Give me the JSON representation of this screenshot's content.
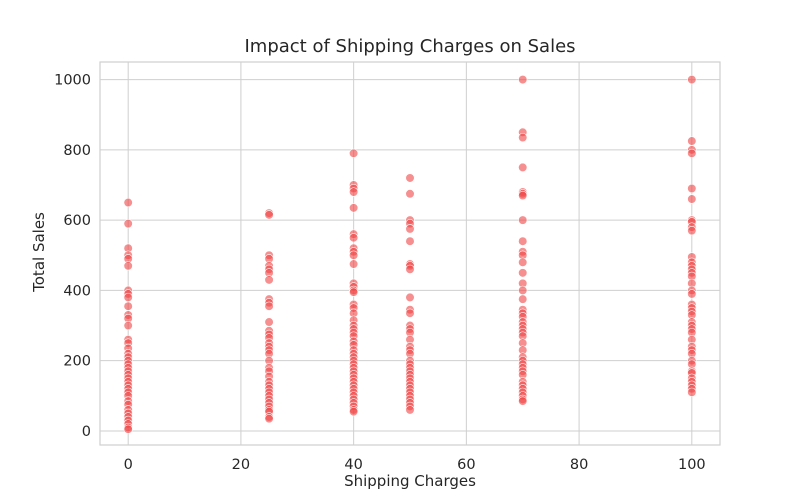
{
  "chart_data": {
    "type": "scatter",
    "title": "Impact of Shipping Charges on Sales",
    "xlabel": "Shipping Charges",
    "ylabel": "Total Sales",
    "xlim": [
      -5,
      105
    ],
    "ylim": [
      -40,
      1050
    ],
    "xticks": [
      0,
      20,
      40,
      60,
      80,
      100
    ],
    "yticks": [
      0,
      200,
      400,
      600,
      800,
      1000
    ],
    "grid": true,
    "point_color": "#f04444",
    "series": [
      {
        "points": [
          [
            0,
            650
          ],
          [
            0,
            590
          ],
          [
            0,
            520
          ],
          [
            0,
            500
          ],
          [
            0,
            490
          ],
          [
            0,
            470
          ],
          [
            0,
            400
          ],
          [
            0,
            390
          ],
          [
            0,
            380
          ],
          [
            0,
            355
          ],
          [
            0,
            330
          ],
          [
            0,
            320
          ],
          [
            0,
            300
          ],
          [
            0,
            260
          ],
          [
            0,
            250
          ],
          [
            0,
            235
          ],
          [
            0,
            220
          ],
          [
            0,
            210
          ],
          [
            0,
            200
          ],
          [
            0,
            190
          ],
          [
            0,
            180
          ],
          [
            0,
            170
          ],
          [
            0,
            160
          ],
          [
            0,
            150
          ],
          [
            0,
            140
          ],
          [
            0,
            130
          ],
          [
            0,
            120
          ],
          [
            0,
            110
          ],
          [
            0,
            100
          ],
          [
            0,
            85
          ],
          [
            0,
            75
          ],
          [
            0,
            60
          ],
          [
            0,
            50
          ],
          [
            0,
            40
          ],
          [
            0,
            30
          ],
          [
            0,
            20
          ],
          [
            0,
            10
          ],
          [
            0,
            5
          ],
          [
            25,
            620
          ],
          [
            25,
            615
          ],
          [
            25,
            500
          ],
          [
            25,
            490
          ],
          [
            25,
            470
          ],
          [
            25,
            460
          ],
          [
            25,
            450
          ],
          [
            25,
            430
          ],
          [
            25,
            375
          ],
          [
            25,
            365
          ],
          [
            25,
            355
          ],
          [
            25,
            310
          ],
          [
            25,
            285
          ],
          [
            25,
            275
          ],
          [
            25,
            265
          ],
          [
            25,
            250
          ],
          [
            25,
            240
          ],
          [
            25,
            230
          ],
          [
            25,
            220
          ],
          [
            25,
            200
          ],
          [
            25,
            180
          ],
          [
            25,
            170
          ],
          [
            25,
            155
          ],
          [
            25,
            140
          ],
          [
            25,
            130
          ],
          [
            25,
            120
          ],
          [
            25,
            110
          ],
          [
            25,
            100
          ],
          [
            25,
            90
          ],
          [
            25,
            80
          ],
          [
            25,
            70
          ],
          [
            25,
            60
          ],
          [
            25,
            55
          ],
          [
            25,
            40
          ],
          [
            25,
            35
          ],
          [
            40,
            790
          ],
          [
            40,
            700
          ],
          [
            40,
            690
          ],
          [
            40,
            680
          ],
          [
            40,
            635
          ],
          [
            40,
            560
          ],
          [
            40,
            550
          ],
          [
            40,
            520
          ],
          [
            40,
            510
          ],
          [
            40,
            500
          ],
          [
            40,
            475
          ],
          [
            40,
            420
          ],
          [
            40,
            410
          ],
          [
            40,
            400
          ],
          [
            40,
            395
          ],
          [
            40,
            360
          ],
          [
            40,
            350
          ],
          [
            40,
            335
          ],
          [
            40,
            315
          ],
          [
            40,
            300
          ],
          [
            40,
            290
          ],
          [
            40,
            280
          ],
          [
            40,
            270
          ],
          [
            40,
            255
          ],
          [
            40,
            245
          ],
          [
            40,
            230
          ],
          [
            40,
            220
          ],
          [
            40,
            210
          ],
          [
            40,
            200
          ],
          [
            40,
            190
          ],
          [
            40,
            180
          ],
          [
            40,
            170
          ],
          [
            40,
            160
          ],
          [
            40,
            150
          ],
          [
            40,
            140
          ],
          [
            40,
            130
          ],
          [
            40,
            120
          ],
          [
            40,
            110
          ],
          [
            40,
            100
          ],
          [
            40,
            90
          ],
          [
            40,
            80
          ],
          [
            40,
            70
          ],
          [
            40,
            60
          ],
          [
            40,
            55
          ],
          [
            50,
            720
          ],
          [
            50,
            675
          ],
          [
            50,
            600
          ],
          [
            50,
            590
          ],
          [
            50,
            575
          ],
          [
            50,
            540
          ],
          [
            50,
            475
          ],
          [
            50,
            470
          ],
          [
            50,
            460
          ],
          [
            50,
            380
          ],
          [
            50,
            345
          ],
          [
            50,
            335
          ],
          [
            50,
            300
          ],
          [
            50,
            290
          ],
          [
            50,
            280
          ],
          [
            50,
            260
          ],
          [
            50,
            240
          ],
          [
            50,
            230
          ],
          [
            50,
            220
          ],
          [
            50,
            200
          ],
          [
            50,
            190
          ],
          [
            50,
            180
          ],
          [
            50,
            170
          ],
          [
            50,
            160
          ],
          [
            50,
            150
          ],
          [
            50,
            140
          ],
          [
            50,
            130
          ],
          [
            50,
            120
          ],
          [
            50,
            110
          ],
          [
            50,
            100
          ],
          [
            50,
            90
          ],
          [
            50,
            80
          ],
          [
            50,
            70
          ],
          [
            50,
            60
          ],
          [
            70,
            1000
          ],
          [
            70,
            850
          ],
          [
            70,
            835
          ],
          [
            70,
            750
          ],
          [
            70,
            680
          ],
          [
            70,
            675
          ],
          [
            70,
            670
          ],
          [
            70,
            600
          ],
          [
            70,
            540
          ],
          [
            70,
            510
          ],
          [
            70,
            500
          ],
          [
            70,
            480
          ],
          [
            70,
            450
          ],
          [
            70,
            420
          ],
          [
            70,
            400
          ],
          [
            70,
            375
          ],
          [
            70,
            345
          ],
          [
            70,
            335
          ],
          [
            70,
            325
          ],
          [
            70,
            310
          ],
          [
            70,
            300
          ],
          [
            70,
            290
          ],
          [
            70,
            280
          ],
          [
            70,
            270
          ],
          [
            70,
            250
          ],
          [
            70,
            230
          ],
          [
            70,
            210
          ],
          [
            70,
            200
          ],
          [
            70,
            190
          ],
          [
            70,
            180
          ],
          [
            70,
            170
          ],
          [
            70,
            160
          ],
          [
            70,
            140
          ],
          [
            70,
            130
          ],
          [
            70,
            120
          ],
          [
            70,
            110
          ],
          [
            70,
            100
          ],
          [
            70,
            90
          ],
          [
            70,
            85
          ],
          [
            100,
            1000
          ],
          [
            100,
            825
          ],
          [
            100,
            800
          ],
          [
            100,
            790
          ],
          [
            100,
            690
          ],
          [
            100,
            660
          ],
          [
            100,
            600
          ],
          [
            100,
            595
          ],
          [
            100,
            580
          ],
          [
            100,
            570
          ],
          [
            100,
            495
          ],
          [
            100,
            480
          ],
          [
            100,
            470
          ],
          [
            100,
            460
          ],
          [
            100,
            450
          ],
          [
            100,
            440
          ],
          [
            100,
            420
          ],
          [
            100,
            400
          ],
          [
            100,
            390
          ],
          [
            100,
            360
          ],
          [
            100,
            350
          ],
          [
            100,
            340
          ],
          [
            100,
            330
          ],
          [
            100,
            310
          ],
          [
            100,
            300
          ],
          [
            100,
            290
          ],
          [
            100,
            280
          ],
          [
            100,
            260
          ],
          [
            100,
            240
          ],
          [
            100,
            230
          ],
          [
            100,
            220
          ],
          [
            100,
            200
          ],
          [
            100,
            190
          ],
          [
            100,
            170
          ],
          [
            100,
            165
          ],
          [
            100,
            150
          ],
          [
            100,
            140
          ],
          [
            100,
            130
          ],
          [
            100,
            120
          ],
          [
            100,
            110
          ]
        ]
      }
    ]
  }
}
